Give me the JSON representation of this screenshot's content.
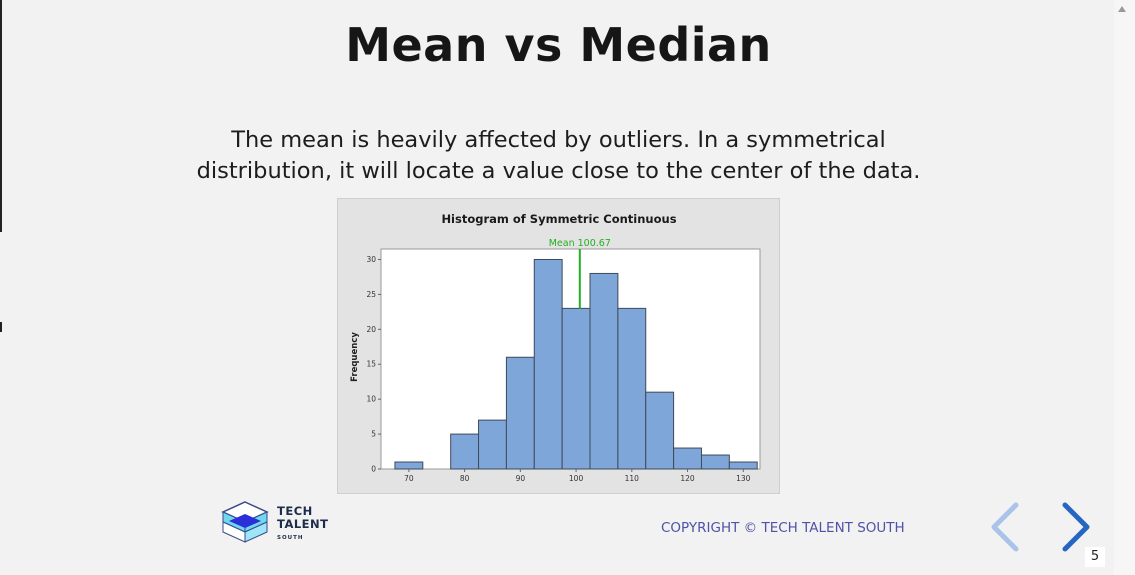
{
  "slide": {
    "title": "Mean vs Median",
    "body": "The mean is heavily affected by outliers. In a symmetrical distribution, it will locate a value close to the center of the data.",
    "copyright": "COPYRIGHT © TECH TALENT SOUTH",
    "page_number": "5"
  },
  "logo": {
    "line1": "TECH",
    "line2": "TALENT",
    "line3": "SOUTH"
  },
  "navigation": {
    "prev_icon": "chevron-left-icon",
    "next_icon": "chevron-right-icon"
  },
  "colors": {
    "title": "#161616",
    "bars": "#7fa6d8",
    "bar_outline": "#3f4a5a",
    "mean_line": "#22b022",
    "copyright": "#4f52a8",
    "nav_prev": "#a9c3ea",
    "nav_next": "#2566c2"
  },
  "chart_data": {
    "type": "bar",
    "title": "Histogram of Symmetric Continuous",
    "xlabel": "",
    "ylabel": "Frequency",
    "bin_width": 5,
    "bins": [
      {
        "start": 67.5,
        "end": 72.5,
        "value": 1
      },
      {
        "start": 72.5,
        "end": 77.5,
        "value": 0
      },
      {
        "start": 77.5,
        "end": 82.5,
        "value": 5
      },
      {
        "start": 82.5,
        "end": 87.5,
        "value": 7
      },
      {
        "start": 87.5,
        "end": 92.5,
        "value": 16
      },
      {
        "start": 92.5,
        "end": 97.5,
        "value": 30
      },
      {
        "start": 97.5,
        "end": 102.5,
        "value": 23
      },
      {
        "start": 102.5,
        "end": 107.5,
        "value": 28
      },
      {
        "start": 107.5,
        "end": 112.5,
        "value": 23
      },
      {
        "start": 112.5,
        "end": 117.5,
        "value": 11
      },
      {
        "start": 117.5,
        "end": 122.5,
        "value": 3
      },
      {
        "start": 122.5,
        "end": 127.5,
        "value": 2
      },
      {
        "start": 127.5,
        "end": 132.5,
        "value": 1
      }
    ],
    "xlim": [
      65,
      133
    ],
    "ylim": [
      0,
      31.5
    ],
    "xticks": [
      70,
      80,
      90,
      100,
      110,
      120,
      130
    ],
    "yticks": [
      0,
      5,
      10,
      15,
      20,
      25,
      30
    ],
    "mean": {
      "label": "Mean 100.67",
      "value": 100.67
    }
  }
}
